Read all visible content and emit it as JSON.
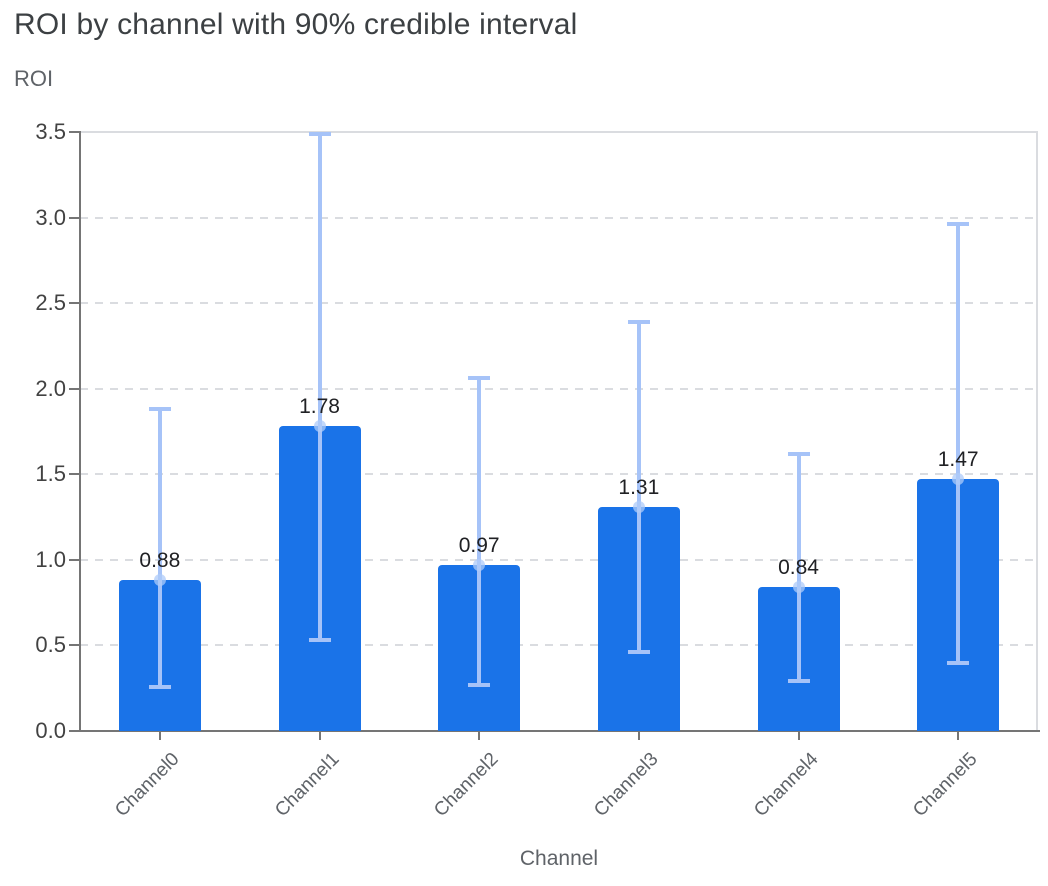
{
  "chart_data": {
    "type": "bar",
    "title": "ROI by channel with 90% credible interval",
    "ylabel": "ROI",
    "xlabel": "Channel",
    "categories": [
      "Channel0",
      "Channel1",
      "Channel2",
      "Channel3",
      "Channel4",
      "Channel5"
    ],
    "series": [
      {
        "name": "ROI",
        "values": [
          0.88,
          1.78,
          0.97,
          1.31,
          0.84,
          1.47
        ]
      }
    ],
    "value_labels": [
      "0.88",
      "1.78",
      "0.97",
      "1.31",
      "0.84",
      "1.47"
    ],
    "error_bars": {
      "label": "90% credible interval",
      "low": [
        0.26,
        0.53,
        0.27,
        0.46,
        0.29,
        0.4
      ],
      "high": [
        1.88,
        3.49,
        2.06,
        2.39,
        1.62,
        2.96
      ]
    },
    "ylim": [
      0,
      3.5
    ],
    "yticks": [
      "0.0",
      "0.5",
      "1.0",
      "1.5",
      "2.0",
      "2.5",
      "3.0",
      "3.5"
    ],
    "grid": "horizontal-dashed",
    "legend": "none",
    "colors": {
      "bar": "#1a73e8",
      "error_bar": "#a6c3f8",
      "marker": "#aecbfa",
      "grid": "#dadce0",
      "axis": "#757575",
      "title": "#3c4043",
      "axis_title": "#5f6368",
      "y_tick": "#424242",
      "x_tick": "#5f6368",
      "value_label": "#202124"
    }
  }
}
